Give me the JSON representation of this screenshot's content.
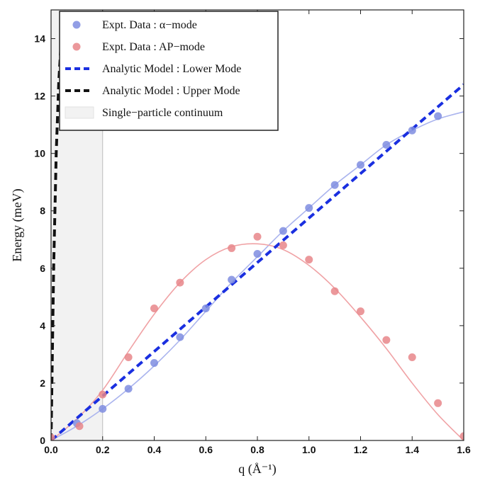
{
  "chart_data": {
    "type": "scatter",
    "xlabel": "q (Å⁻¹)",
    "ylabel": "Energy (meV)",
    "xlim": [
      0.0,
      1.6
    ],
    "ylim": [
      0,
      15
    ],
    "xticks": [
      "0.0",
      "0.2",
      "0.4",
      "0.6",
      "0.8",
      "1.0",
      "1.2",
      "1.4",
      "1.6"
    ],
    "yticks": [
      "0",
      "2",
      "4",
      "6",
      "8",
      "10",
      "12",
      "14"
    ],
    "grid": false,
    "legend_position": "top-left",
    "continuum_band": {
      "label": "Single−particle continuum",
      "x_range": [
        0.0,
        0.2
      ],
      "color": "#f2f2f2"
    },
    "series": [
      {
        "name": "Expt. Data : α−mode",
        "kind": "points",
        "color": "#7f8de0",
        "x": [
          0.1,
          0.2,
          0.3,
          0.4,
          0.5,
          0.6,
          0.7,
          0.8,
          0.9,
          1.0,
          1.1,
          1.2,
          1.3,
          1.4,
          1.5
        ],
        "y": [
          0.6,
          1.1,
          1.8,
          2.7,
          3.6,
          4.6,
          5.6,
          6.5,
          7.3,
          8.1,
          8.9,
          9.6,
          10.3,
          10.8,
          11.3
        ]
      },
      {
        "name": "Expt. Data : AP−mode",
        "kind": "points",
        "color": "#e8868a",
        "x": [
          0.0,
          0.11,
          0.2,
          0.3,
          0.4,
          0.5,
          0.7,
          0.8,
          0.9,
          1.0,
          1.1,
          1.2,
          1.3,
          1.4,
          1.5,
          1.6
        ],
        "y": [
          0.1,
          0.5,
          1.6,
          2.9,
          4.6,
          5.5,
          6.7,
          7.1,
          6.8,
          6.3,
          5.2,
          4.5,
          3.5,
          2.9,
          1.3,
          0.15
        ]
      },
      {
        "name": "α−mode fit",
        "kind": "curve",
        "color": "#aab4ee",
        "x": [
          0.0,
          0.1,
          0.2,
          0.3,
          0.4,
          0.5,
          0.6,
          0.7,
          0.8,
          0.9,
          1.0,
          1.1,
          1.2,
          1.3,
          1.4,
          1.5,
          1.6
        ],
        "y": [
          0.0,
          0.5,
          1.1,
          1.8,
          2.6,
          3.5,
          4.5,
          5.5,
          6.4,
          7.3,
          8.1,
          8.9,
          9.6,
          10.3,
          10.8,
          11.2,
          11.45
        ]
      },
      {
        "name": "AP−mode fit",
        "kind": "curve",
        "color": "#f0a2a5",
        "x": [
          0.0,
          0.1,
          0.2,
          0.3,
          0.4,
          0.5,
          0.6,
          0.7,
          0.8,
          0.9,
          1.0,
          1.1,
          1.2,
          1.3,
          1.4,
          1.5,
          1.6
        ],
        "y": [
          0.0,
          0.75,
          1.75,
          3.1,
          4.4,
          5.5,
          6.3,
          6.75,
          6.85,
          6.65,
          6.1,
          5.3,
          4.3,
          3.2,
          2.0,
          0.9,
          0.0
        ]
      },
      {
        "name": "Analytic Model : Lower Mode",
        "kind": "dashed",
        "color": "#1a2fe0",
        "x": [
          0.0,
          1.6
        ],
        "y": [
          0.0,
          12.4
        ]
      },
      {
        "name": "Analytic Model : Upper Mode",
        "kind": "dashed",
        "color": "#111111",
        "x": [
          0.0,
          0.01,
          0.02,
          0.03,
          0.04,
          0.05
        ],
        "y": [
          0.0,
          6.0,
          10.0,
          12.5,
          14.0,
          15.0
        ]
      }
    ]
  },
  "legend": [
    {
      "label": "Expt. Data : α−mode",
      "symbol": "dot",
      "color": "#7f8de0"
    },
    {
      "label": "Expt. Data : AP−mode",
      "symbol": "dot",
      "color": "#e8868a"
    },
    {
      "label": "Analytic Model : Lower Mode",
      "symbol": "dash",
      "color": "#1a2fe0"
    },
    {
      "label": "Analytic Model : Upper Mode",
      "symbol": "dash",
      "color": "#111111"
    },
    {
      "label": "Single−particle continuum",
      "symbol": "box",
      "color": "#f2f2f2"
    }
  ]
}
